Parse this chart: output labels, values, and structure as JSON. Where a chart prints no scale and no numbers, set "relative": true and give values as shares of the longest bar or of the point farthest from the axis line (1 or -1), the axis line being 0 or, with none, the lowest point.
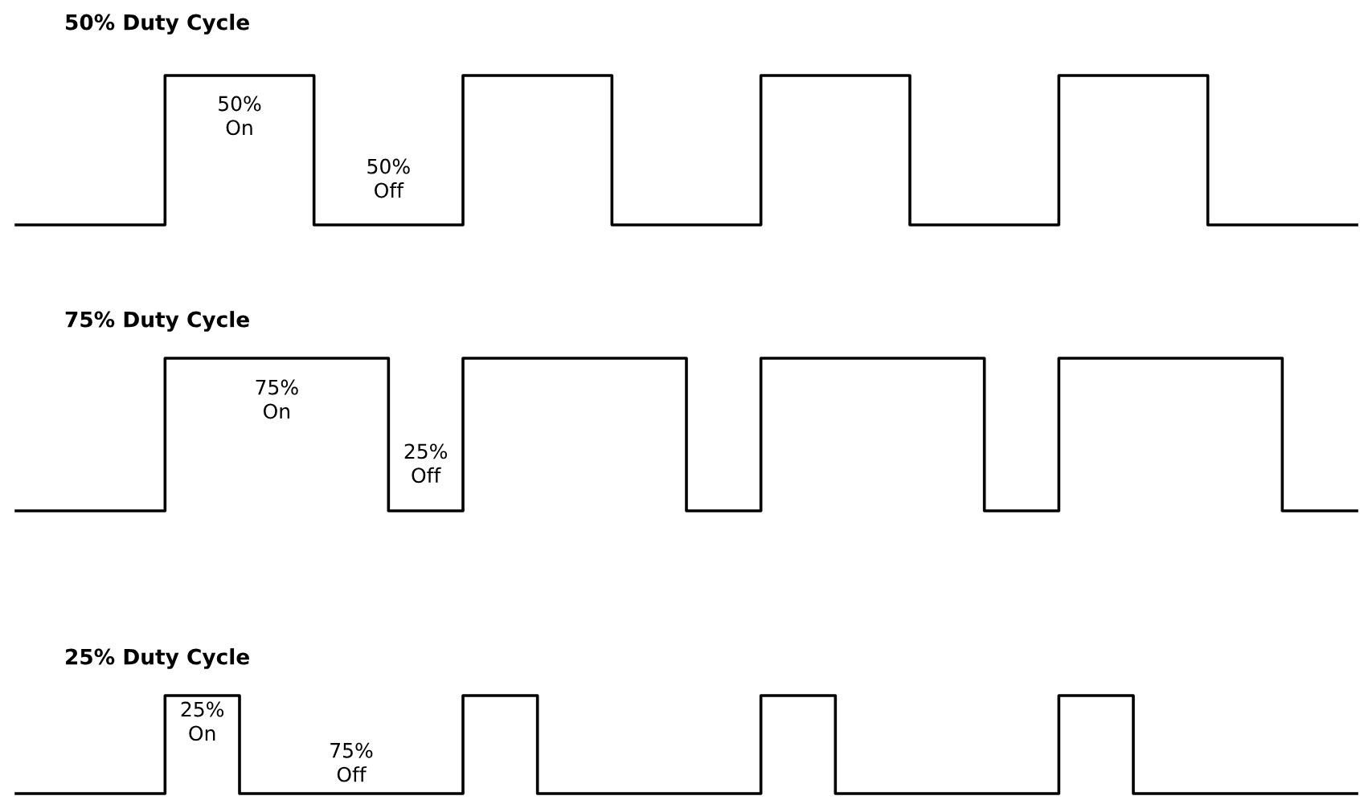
{
  "chart_data": [
    {
      "type": "step",
      "title": "50% Duty Cycle",
      "relative": true,
      "color": "#000000",
      "categories": [
        null,
        null,
        null,
        null,
        null,
        null,
        null,
        null,
        null,
        null,
        null,
        null,
        null,
        null,
        null,
        null,
        null,
        null,
        null
      ],
      "values": [
        0,
        0,
        1,
        1,
        0,
        0,
        1,
        1,
        0,
        0,
        1,
        1,
        0,
        0,
        1,
        1,
        0,
        0,
        0
      ],
      "annotations": [
        "50%\nOn",
        "50%\nOff"
      ]
    },
    {
      "type": "step",
      "title": "75% Duty Cycle",
      "relative": true,
      "color": "#000000",
      "categories": [
        null,
        null,
        null,
        null,
        null,
        null,
        null,
        null,
        null,
        null,
        null,
        null,
        null,
        null,
        null,
        null,
        null,
        null,
        null
      ],
      "values": [
        0,
        0,
        1,
        1,
        1,
        0,
        1,
        1,
        1,
        0,
        1,
        1,
        1,
        0,
        1,
        1,
        1,
        0,
        0
      ],
      "annotations": [
        "75%\nOn",
        "25%\nOff"
      ]
    },
    {
      "type": "step",
      "title": "25% Duty Cycle",
      "relative": true,
      "color": "#000000",
      "categories": [
        null,
        null,
        null,
        null,
        null,
        null,
        null,
        null,
        null,
        null,
        null,
        null,
        null,
        null,
        null,
        null,
        null,
        null,
        null
      ],
      "values": [
        0,
        0,
        1,
        0,
        0,
        0,
        1,
        0,
        0,
        0,
        1,
        0,
        0,
        0,
        1,
        0,
        0,
        0,
        0
      ],
      "annotations": [
        "25%\nOn",
        "75%\nOff"
      ]
    }
  ]
}
